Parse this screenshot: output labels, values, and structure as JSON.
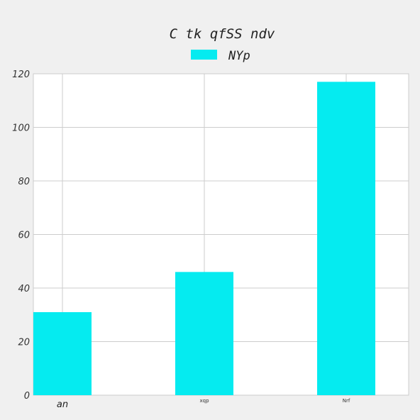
{
  "chart_data": {
    "type": "bar",
    "title": "C tk qfSS  ndv",
    "categories": [
      "an",
      "xqp",
      "Nrf"
    ],
    "series": [
      {
        "name": "NYp",
        "values": [
          31,
          46,
          117
        ],
        "color": "#05ebf0"
      }
    ],
    "xlabel": "",
    "ylabel": "",
    "ylim": [
      0,
      120
    ],
    "yticks": [
      0,
      20,
      40,
      60,
      80,
      100,
      120
    ],
    "grid": true,
    "legend_position": "top-center"
  }
}
